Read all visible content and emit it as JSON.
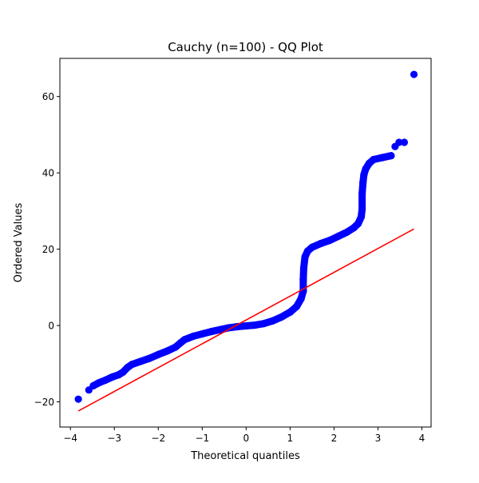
{
  "chart_data": {
    "type": "scatter",
    "title": "Cauchy (n=100) - QQ Plot",
    "xlabel": "Theoretical quantiles",
    "ylabel": "Ordered Values",
    "xlim": [
      -4.24,
      4.21
    ],
    "ylim": [
      -26.6,
      70
    ],
    "xticks": [
      -4,
      -3,
      -2,
      -1,
      0,
      1,
      2,
      3,
      4
    ],
    "yticks": [
      -20,
      0,
      20,
      40,
      60
    ],
    "grid": false,
    "colors": {
      "points": "#0000ff",
      "fit_line": "#ff0000"
    },
    "points": [
      [
        -3.82,
        -19.3
      ],
      [
        -3.58,
        -16.9
      ],
      [
        -3.48,
        -15.8
      ],
      [
        -3.35,
        -15.0
      ],
      [
        -3.2,
        -14.3
      ],
      [
        -3.05,
        -13.5
      ],
      [
        -2.9,
        -12.9
      ],
      [
        -2.8,
        -12.2
      ],
      [
        -2.7,
        -11.0
      ],
      [
        -2.6,
        -10.2
      ],
      [
        -2.4,
        -9.4
      ],
      [
        -2.2,
        -8.6
      ],
      [
        -2.0,
        -7.6
      ],
      [
        -1.8,
        -6.7
      ],
      [
        -1.6,
        -5.6
      ],
      [
        -1.5,
        -4.6
      ],
      [
        -1.4,
        -3.7
      ],
      [
        -1.2,
        -2.8
      ],
      [
        -1.0,
        -2.2
      ],
      [
        -0.8,
        -1.6
      ],
      [
        -0.6,
        -1.1
      ],
      [
        -0.4,
        -0.6
      ],
      [
        -0.2,
        -0.3
      ],
      [
        0.0,
        -0.1
      ],
      [
        0.2,
        0.1
      ],
      [
        0.4,
        0.5
      ],
      [
        0.6,
        1.2
      ],
      [
        0.8,
        2.2
      ],
      [
        1.0,
        3.5
      ],
      [
        1.15,
        5.0
      ],
      [
        1.25,
        7.0
      ],
      [
        1.3,
        9.0
      ],
      [
        1.3,
        12.0
      ],
      [
        1.31,
        15.0
      ],
      [
        1.34,
        18.0
      ],
      [
        1.4,
        19.5
      ],
      [
        1.5,
        20.5
      ],
      [
        1.7,
        21.5
      ],
      [
        1.9,
        22.3
      ],
      [
        2.1,
        23.4
      ],
      [
        2.3,
        24.5
      ],
      [
        2.45,
        25.6
      ],
      [
        2.55,
        26.7
      ],
      [
        2.62,
        28.5
      ],
      [
        2.64,
        30.5
      ],
      [
        2.64,
        34.5
      ],
      [
        2.66,
        37.5
      ],
      [
        2.68,
        39.5
      ],
      [
        2.72,
        41.0
      ],
      [
        2.8,
        42.5
      ],
      [
        2.9,
        43.5
      ],
      [
        3.1,
        44.0
      ],
      [
        3.3,
        44.5
      ],
      [
        3.39,
        46.9
      ],
      [
        3.48,
        48.0
      ],
      [
        3.6,
        48.0
      ],
      [
        3.82,
        65.8
      ]
    ],
    "fit_line": [
      [
        -3.82,
        -22.4
      ],
      [
        3.82,
        25.3
      ]
    ]
  }
}
